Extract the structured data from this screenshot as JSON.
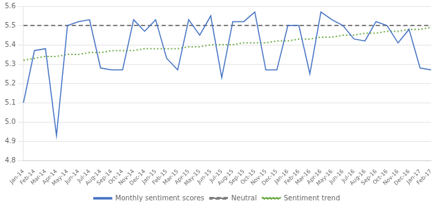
{
  "chart_data": {
    "type": "line",
    "categories": [
      "Jan-14",
      "Feb-14",
      "Mar-14",
      "Apr-14",
      "May-14",
      "Jun-14",
      "Jul-14",
      "Aug-14",
      "Sep-14",
      "Oct-14",
      "Nov-14",
      "Dec-14",
      "Jan-15",
      "Feb-15",
      "Mar-15",
      "Apr-15",
      "May-15",
      "Jun-15",
      "Jul-15",
      "Aug-15",
      "Sep-15",
      "Oct-15",
      "Nov-15",
      "Dec-15",
      "Jan-16",
      "Feb-16",
      "Mar-16",
      "Apr-16",
      "May-16",
      "Jun-16",
      "Jul-16",
      "Aug-16",
      "Sep-16",
      "Oct-16",
      "Nov-16",
      "Dec-16",
      "Jan-17",
      "Feb-17"
    ],
    "series": [
      {
        "name": "Monthly sentiment scores",
        "color": "#4472C4",
        "line_style": "solid",
        "values": [
          5.1,
          5.37,
          5.38,
          4.93,
          5.5,
          5.52,
          5.53,
          5.28,
          5.27,
          5.27,
          5.53,
          5.47,
          5.53,
          5.33,
          5.27,
          5.53,
          5.45,
          5.55,
          5.23,
          5.52,
          5.52,
          5.57,
          5.27,
          5.27,
          5.5,
          5.5,
          5.25,
          5.57,
          5.53,
          5.5,
          5.43,
          5.42,
          5.52,
          5.5,
          5.41,
          5.48,
          5.28,
          5.27
        ]
      },
      {
        "name": "Neutral",
        "color": "#7F7F7F",
        "line_style": "dashed",
        "y": 5.5
      },
      {
        "name": "Sentiment trend",
        "color": "#70AD47",
        "line_style": "dotted",
        "values": [
          5.32,
          5.33,
          5.34,
          5.34,
          5.35,
          5.35,
          5.36,
          5.36,
          5.37,
          5.37,
          5.37,
          5.38,
          5.38,
          5.38,
          5.38,
          5.39,
          5.39,
          5.4,
          5.4,
          5.4,
          5.41,
          5.41,
          5.41,
          5.42,
          5.42,
          5.43,
          5.43,
          5.44,
          5.44,
          5.45,
          5.45,
          5.46,
          5.46,
          5.47,
          5.47,
          5.48,
          5.48,
          5.49
        ]
      }
    ],
    "ylim": [
      4.8,
      5.6
    ],
    "yticks": [
      4.8,
      4.9,
      {
        "value": 5,
        "label": "5.0"
      },
      5.1,
      5.2,
      5.3,
      5.4,
      5.5,
      5.6
    ],
    "grid": true,
    "legend": "bottom"
  }
}
